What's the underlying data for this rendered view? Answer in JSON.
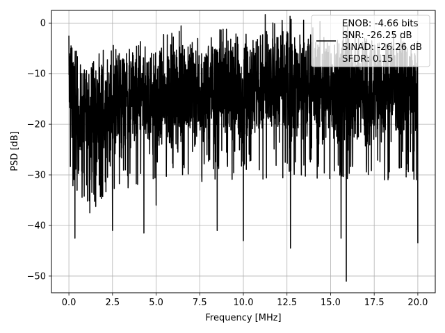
{
  "chart_data": {
    "type": "line",
    "title": "",
    "xlabel": "Frequency [MHz]",
    "ylabel": "PSD [dB]",
    "xlim": [
      -1.0,
      21.0
    ],
    "ylim": [
      -53.3,
      2.5
    ],
    "x_ticks": [
      0.0,
      2.5,
      5.0,
      7.5,
      10.0,
      12.5,
      15.0,
      17.5,
      20.0
    ],
    "x_tick_labels": [
      "0.0",
      "2.5",
      "5.0",
      "7.5",
      "10.0",
      "12.5",
      "15.0",
      "17.5",
      "20.0"
    ],
    "y_ticks": [
      0,
      -10,
      -20,
      -30,
      -40,
      -50
    ],
    "y_tick_labels": [
      "0",
      "−10",
      "−20",
      "−30",
      "−40",
      "−50"
    ],
    "grid": true,
    "legend_position": "top-right",
    "series": [
      {
        "name": "ENOB: -4.66 bits\nSNR: -26.25 dB\nSINAD: -26.26 dB\nSFDR: 0.15",
        "color": "#000000",
        "x_range": [
          0.0,
          20.0
        ],
        "envelope_x": [
          0.0,
          0.25,
          0.5,
          1.0,
          1.5,
          2.0,
          2.5,
          3.0,
          4.0,
          5.0,
          6.0,
          7.0,
          8.0,
          9.0,
          10.0,
          11.0,
          12.0,
          13.0,
          14.0,
          15.0,
          16.0,
          17.0,
          18.0,
          19.0,
          20.0
        ],
        "envelope_upper": [
          -3,
          -5,
          -8,
          -9,
          -9,
          -8,
          -8,
          -7,
          -6,
          -6,
          -5,
          -5,
          -5,
          -4,
          -4,
          -3,
          -2,
          -2,
          -3,
          -3,
          -3,
          -3,
          -4,
          -4,
          -6
        ],
        "envelope_lower": [
          -26,
          -30,
          -33,
          -33,
          -33,
          -31,
          -30,
          -29,
          -28,
          -28,
          -28,
          -28,
          -27,
          -27,
          -27,
          -27,
          -27,
          -27,
          -27,
          -27,
          -27,
          -27,
          -27,
          -27,
          -27
        ],
        "notable_points": [
          {
            "x": 0.0,
            "y": -2.5
          },
          {
            "x": 0.12,
            "y": -4.5
          },
          {
            "x": 0.35,
            "y": -42.5
          },
          {
            "x": 1.2,
            "y": -37.5
          },
          {
            "x": 2.5,
            "y": -41.0
          },
          {
            "x": 4.3,
            "y": -41.5
          },
          {
            "x": 5.0,
            "y": -36.0
          },
          {
            "x": 8.5,
            "y": -41.0
          },
          {
            "x": 10.0,
            "y": -43.0
          },
          {
            "x": 12.7,
            "y": -44.5
          },
          {
            "x": 15.6,
            "y": -42.5
          },
          {
            "x": 15.9,
            "y": -51.0
          },
          {
            "x": 20.0,
            "y": -43.5
          }
        ]
      }
    ]
  },
  "legend": {
    "lines": [
      "ENOB: -4.66 bits",
      "SNR: -26.25 dB",
      "SINAD: -26.26 dB",
      "SFDR: 0.15"
    ]
  }
}
